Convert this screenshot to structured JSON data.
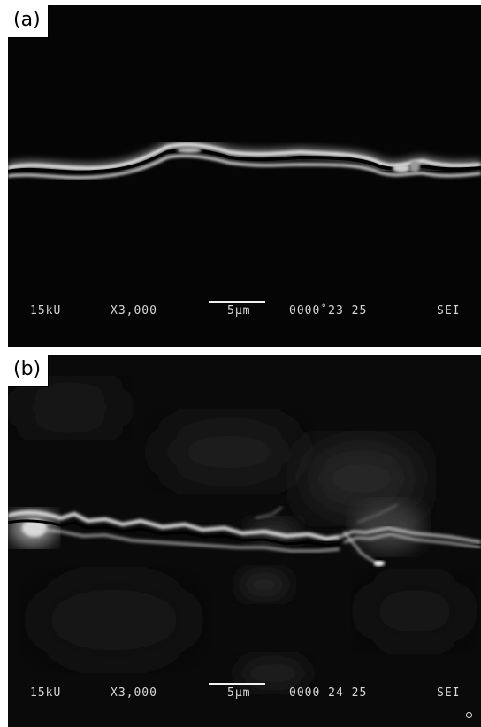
{
  "panels": [
    {
      "label": "(a)",
      "databar": {
        "voltage": "15kU",
        "magnification": "X3,000",
        "scale": "5µm",
        "image_id": "0000˚23 25",
        "signal": "SEI"
      }
    },
    {
      "label": "(b)",
      "databar": {
        "voltage": "15kU",
        "magnification": "X3,000",
        "scale": "5µm",
        "image_id": "0000 24 25",
        "signal": "SEI"
      }
    }
  ]
}
